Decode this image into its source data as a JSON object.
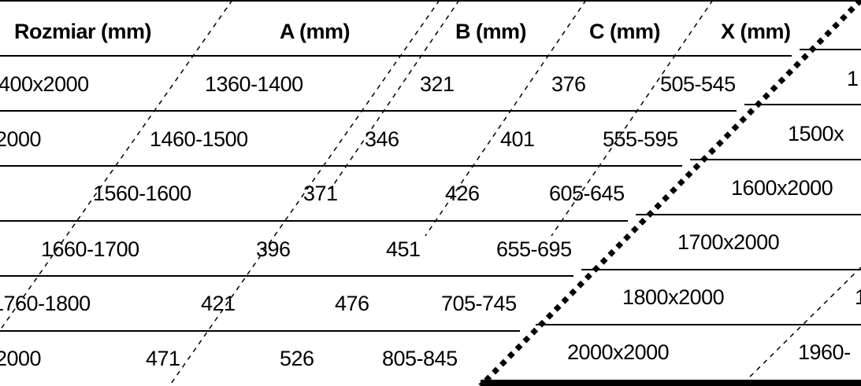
{
  "table": {
    "headers": [
      "Rozmiar (mm)",
      "A (mm)",
      "B (mm)",
      "C (mm)",
      "X (mm)"
    ],
    "rows": [
      {
        "left": [
          "400x2000",
          "1360-1400",
          "321",
          "376",
          "505-545"
        ],
        "right": [
          "1"
        ]
      },
      {
        "left": [
          "2000",
          "1460-1500",
          "346",
          "401",
          "555-595"
        ],
        "right": [
          "1500x"
        ]
      },
      {
        "left": [
          "1560-1600",
          "371",
          "426",
          "605-645"
        ],
        "right": [
          "1600x2000"
        ]
      },
      {
        "left": [
          "1660-1700",
          "396",
          "451",
          "655-695"
        ],
        "right": [
          "1700x2000"
        ]
      },
      {
        "left": [
          "1760-1800",
          "421",
          "476",
          "705-745"
        ],
        "right": [
          "1800x2000",
          "1"
        ]
      },
      {
        "left": [
          "2000",
          "471",
          "526",
          "805-845"
        ],
        "right": [
          "2000x2000",
          "1960-"
        ]
      }
    ]
  },
  "colors": {
    "text": "#000000",
    "background": "#ffffff",
    "rule": "#000000"
  }
}
